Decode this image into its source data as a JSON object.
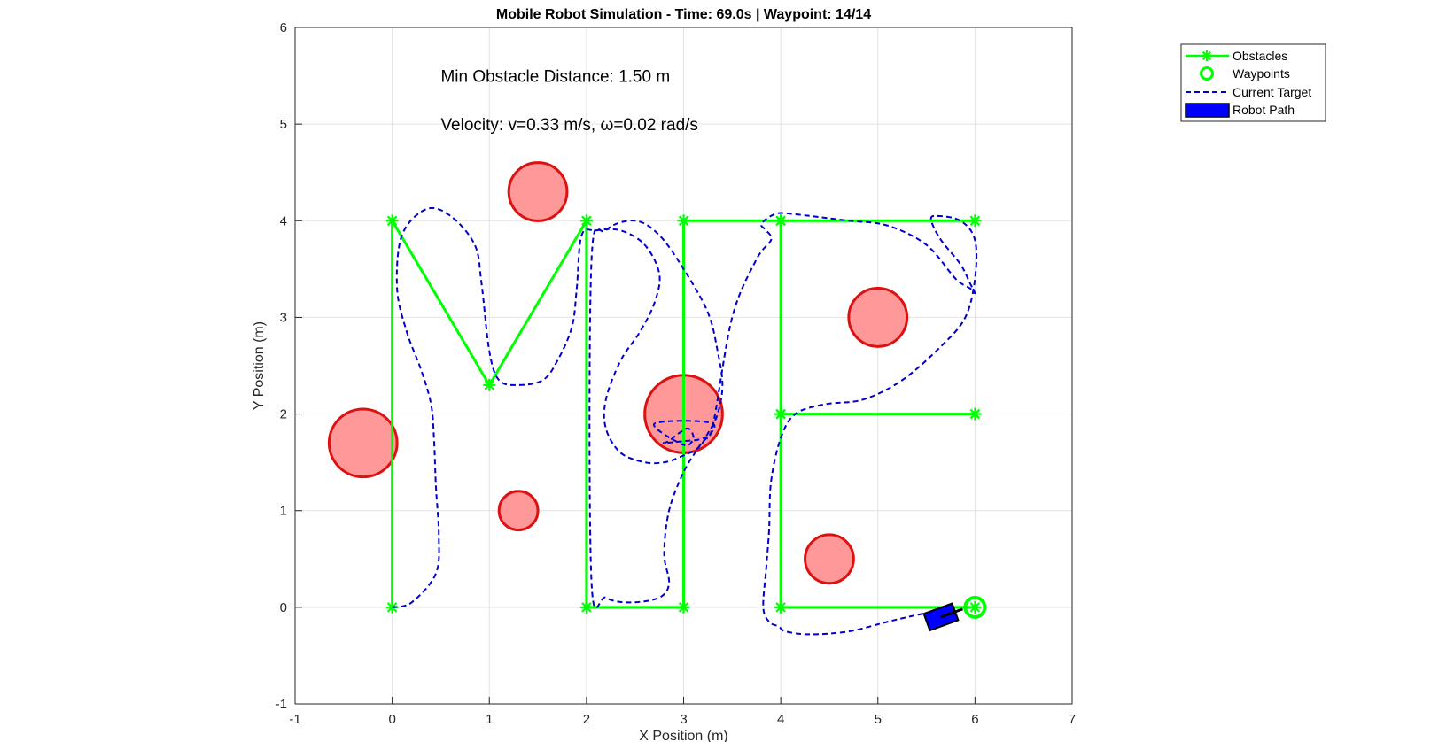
{
  "chart_data": {
    "type": "line",
    "title": "Mobile Robot Simulation - Time: 69.0s | Waypoint: 14/14",
    "xlabel": "X Position (m)",
    "ylabel": "Y Position (m)",
    "xlim": [
      -1,
      7
    ],
    "ylim": [
      -1,
      6
    ],
    "xticks": [
      "-1",
      "0",
      "1",
      "2",
      "3",
      "4",
      "5",
      "6",
      "7"
    ],
    "yticks": [
      "-1",
      "0",
      "1",
      "2",
      "3",
      "4",
      "5",
      "6"
    ],
    "grid": true,
    "annotations": [
      {
        "text": "Min Obstacle Distance: 1.50 m",
        "x": 0.5,
        "y": 5.5
      },
      {
        "text": "Velocity: v=0.33 m/s, ω=0.02 rad/s",
        "x": 0.5,
        "y": 5.0
      }
    ],
    "legend": {
      "position": "outside-top-right",
      "entries": [
        "Obstacles",
        "Waypoints",
        "Current Target",
        "Robot Path"
      ]
    },
    "obstacles": [
      {
        "x": 1.5,
        "y": 4.3,
        "r": 0.3
      },
      {
        "x": -0.3,
        "y": 1.7,
        "r": 0.35
      },
      {
        "x": 1.3,
        "y": 1.0,
        "r": 0.2
      },
      {
        "x": 3.0,
        "y": 2.0,
        "r": 0.4
      },
      {
        "x": 5.0,
        "y": 3.0,
        "r": 0.3
      },
      {
        "x": 4.5,
        "y": 0.5,
        "r": 0.25
      }
    ],
    "waypoint_path": {
      "x": [
        0,
        0,
        1,
        2,
        2,
        3,
        3,
        4,
        6,
        4,
        4,
        6,
        4,
        4,
        6
      ],
      "y": [
        0,
        4,
        2.3,
        4,
        0,
        0,
        4,
        4,
        4,
        4,
        2,
        2,
        2,
        0,
        0
      ]
    },
    "robot_path": {
      "x": [
        0.0,
        0.2,
        0.45,
        0.48,
        0.45,
        0.43,
        0.4,
        0.3,
        0.15,
        0.05,
        0.1,
        0.35,
        0.6,
        0.85,
        0.92,
        1.0,
        1.1,
        1.3,
        1.55,
        1.7,
        1.85,
        1.9,
        1.95,
        2.1,
        2.35,
        2.6,
        2.75,
        2.7,
        2.55,
        2.35,
        2.2,
        2.2,
        2.35,
        2.6,
        2.8,
        2.95,
        3.15,
        3.25,
        3.35,
        3.4,
        3.35,
        3.25,
        3.0,
        2.75,
        2.5,
        2.2,
        2.05,
        2.05,
        2.2,
        2.45,
        2.75,
        2.85,
        2.8,
        2.85,
        3.0,
        3.15,
        3.3,
        2.7,
        3.0,
        3.1,
        3.05,
        2.95,
        2.85,
        2.8,
        3.0,
        3.2,
        3.3,
        3.5,
        3.75,
        3.9,
        3.85,
        3.8,
        3.83,
        3.9,
        4.0,
        4.3,
        4.7,
        5.1,
        5.5,
        5.8,
        5.95,
        6.0,
        5.95,
        5.85,
        5.65,
        5.55,
        5.6,
        5.85,
        6.0,
        6.0,
        5.9,
        5.65,
        5.25,
        4.85,
        4.45,
        4.15,
        4.0,
        3.9,
        3.88,
        3.85,
        3.82,
        3.88,
        3.98,
        4.05,
        4.3,
        4.7,
        5.1,
        5.4,
        5.55
      ],
      "y": [
        0.0,
        0.05,
        0.35,
        0.75,
        1.25,
        1.75,
        2.1,
        2.45,
        2.85,
        3.3,
        3.85,
        4.12,
        4.05,
        3.75,
        3.35,
        2.65,
        2.35,
        2.3,
        2.35,
        2.55,
        2.9,
        3.3,
        3.85,
        3.9,
        3.9,
        3.75,
        3.45,
        3.15,
        2.85,
        2.55,
        2.15,
        1.85,
        1.6,
        1.5,
        1.5,
        1.55,
        1.65,
        1.8,
        2.0,
        2.3,
        2.65,
        3.05,
        3.5,
        3.85,
        4.0,
        3.9,
        3.55,
        0.3,
        0.1,
        0.05,
        0.1,
        0.25,
        0.55,
        1.0,
        1.4,
        1.65,
        1.9,
        1.9,
        1.68,
        1.75,
        1.85,
        1.8,
        1.72,
        1.7,
        1.72,
        1.75,
        1.88,
        3.0,
        3.6,
        3.8,
        3.9,
        3.95,
        4.0,
        4.05,
        4.08,
        4.05,
        4.0,
        3.95,
        3.75,
        3.4,
        3.3,
        3.25,
        3.35,
        3.55,
        3.8,
        4.0,
        4.05,
        4.0,
        3.8,
        3.4,
        3.0,
        2.7,
        2.35,
        2.15,
        2.1,
        2.0,
        1.75,
        1.3,
        0.8,
        0.4,
        0.0,
        -0.15,
        -0.2,
        -0.25,
        -0.28,
        -0.25,
        -0.15,
        -0.08,
        -0.05
      ]
    },
    "robot_pose": {
      "x": 5.65,
      "y": -0.1,
      "theta_deg": 20
    },
    "current_waypoint": {
      "x": 6,
      "y": 0
    }
  }
}
